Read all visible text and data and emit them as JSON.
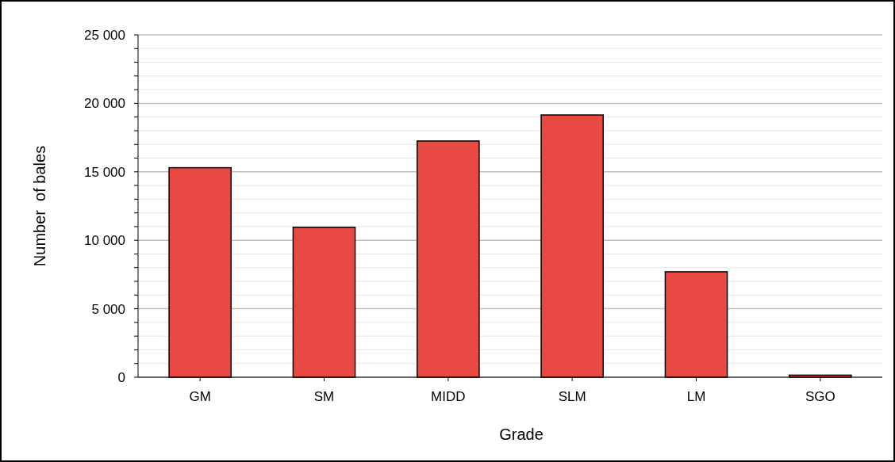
{
  "chart_data": {
    "type": "bar",
    "xlabel": "Grade",
    "ylabel": "Number  of bales",
    "categories": [
      "GM",
      "SM",
      "MIDD",
      "SLM",
      "LM",
      "SGO"
    ],
    "values": [
      15300,
      10950,
      17250,
      19150,
      7700,
      150
    ],
    "color": "#e84a43",
    "ylim": [
      0,
      25000
    ],
    "yticks": [
      0,
      {
        "value": 1000,
        "label": null
      },
      {
        "value": 2000,
        "label": null
      },
      {
        "value": 3000,
        "label": null
      },
      {
        "value": 4000,
        "label": null
      },
      {
        "value": 5000,
        "label": "5 000"
      },
      {
        "value": 6000,
        "label": null
      },
      {
        "value": 7000,
        "label": null
      },
      {
        "value": 8000,
        "label": null
      },
      {
        "value": 9000,
        "label": null
      },
      {
        "value": 10000,
        "label": "10 000"
      },
      {
        "value": 11000,
        "label": null
      },
      {
        "value": 12000,
        "label": null
      },
      {
        "value": 13000,
        "label": null
      },
      {
        "value": 14000,
        "label": null
      },
      {
        "value": 15000,
        "label": "15 000"
      },
      {
        "value": 16000,
        "label": null
      },
      {
        "value": 17000,
        "label": null
      },
      {
        "value": 18000,
        "label": null
      },
      {
        "value": 19000,
        "label": null
      },
      {
        "value": 20000,
        "label": "20 000"
      },
      {
        "value": 21000,
        "label": null
      },
      {
        "value": 22000,
        "label": null
      },
      {
        "value": 23000,
        "label": null
      },
      {
        "value": 24000,
        "label": null
      },
      {
        "value": 25000,
        "label": "25 000"
      }
    ],
    "grid": "y"
  }
}
